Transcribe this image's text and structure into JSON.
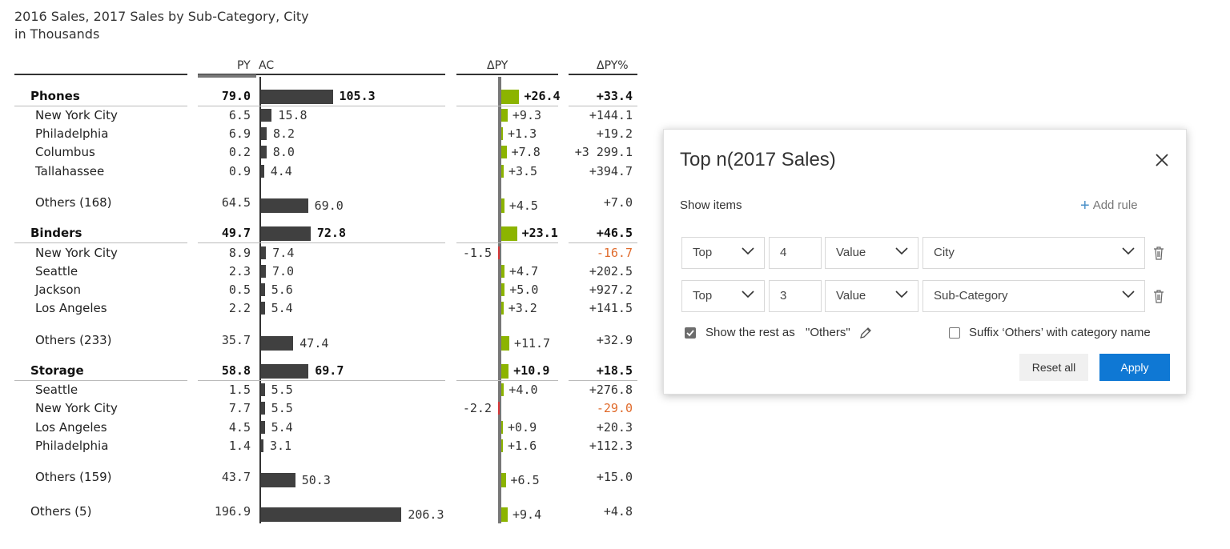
{
  "title_line1": "2016 Sales, 2017 Sales by Sub-Category, City",
  "title_line2": "in Thousands",
  "headers": {
    "py": "PY",
    "ac": "AC",
    "dpy": "ΔPY",
    "dpypct": "ΔPY%"
  },
  "rows": [
    {
      "label": "Phones",
      "group": true,
      "py": "79.0",
      "ac": "105.3",
      "dpy": "+26.4",
      "dpypct": "+33.4",
      "ac_v": 105.3,
      "dpy_v": 26.4
    },
    {
      "label": "New York City",
      "py": "6.5",
      "ac": "15.8",
      "dpy": "+9.3",
      "dpypct": "+144.1",
      "ac_v": 15.8,
      "dpy_v": 9.3
    },
    {
      "label": "Philadelphia",
      "py": "6.9",
      "ac": "8.2",
      "dpy": "+1.3",
      "dpypct": "+19.2",
      "ac_v": 8.2,
      "dpy_v": 1.3
    },
    {
      "label": "Columbus",
      "py": "0.2",
      "ac": "8.0",
      "dpy": "+7.8",
      "dpypct": "+3 299.1",
      "ac_v": 8.0,
      "dpy_v": 7.8
    },
    {
      "label": "Tallahassee",
      "py": "0.9",
      "ac": "4.4",
      "dpy": "+3.5",
      "dpypct": "+394.7",
      "ac_v": 4.4,
      "dpy_v": 3.5
    },
    {
      "label": "Others (168)",
      "py": "64.5",
      "ac": "69.0",
      "dpy": "+4.5",
      "dpypct": "+7.0",
      "ac_v": 69.0,
      "dpy_v": 4.5
    },
    {
      "label": "Binders",
      "group": true,
      "py": "49.7",
      "ac": "72.8",
      "dpy": "+23.1",
      "dpypct": "+46.5",
      "ac_v": 72.8,
      "dpy_v": 23.1
    },
    {
      "label": "New York City",
      "py": "8.9",
      "ac": "7.4",
      "dpy": "-1.5",
      "dpypct": "-16.7",
      "ac_v": 7.4,
      "dpy_v": -1.5
    },
    {
      "label": "Seattle",
      "py": "2.3",
      "ac": "7.0",
      "dpy": "+4.7",
      "dpypct": "+202.5",
      "ac_v": 7.0,
      "dpy_v": 4.7
    },
    {
      "label": "Jackson",
      "py": "0.5",
      "ac": "5.6",
      "dpy": "+5.0",
      "dpypct": "+927.2",
      "ac_v": 5.6,
      "dpy_v": 5.0
    },
    {
      "label": "Los Angeles",
      "py": "2.2",
      "ac": "5.4",
      "dpy": "+3.2",
      "dpypct": "+141.5",
      "ac_v": 5.4,
      "dpy_v": 3.2
    },
    {
      "label": "Others (233)",
      "py": "35.7",
      "ac": "47.4",
      "dpy": "+11.7",
      "dpypct": "+32.9",
      "ac_v": 47.4,
      "dpy_v": 11.7
    },
    {
      "label": "Storage",
      "group": true,
      "py": "58.8",
      "ac": "69.7",
      "dpy": "+10.9",
      "dpypct": "+18.5",
      "ac_v": 69.7,
      "dpy_v": 10.9
    },
    {
      "label": "Seattle",
      "py": "1.5",
      "ac": "5.5",
      "dpy": "+4.0",
      "dpypct": "+276.8",
      "ac_v": 5.5,
      "dpy_v": 4.0
    },
    {
      "label": "New York City",
      "py": "7.7",
      "ac": "5.5",
      "dpy": "-2.2",
      "dpypct": "-29.0",
      "ac_v": 5.5,
      "dpy_v": -2.2
    },
    {
      "label": "Los Angeles",
      "py": "4.5",
      "ac": "5.4",
      "dpy": "+0.9",
      "dpypct": "+20.3",
      "ac_v": 5.4,
      "dpy_v": 0.9
    },
    {
      "label": "Philadelphia",
      "py": "1.4",
      "ac": "3.1",
      "dpy": "+1.6",
      "dpypct": "+112.3",
      "ac_v": 3.1,
      "dpy_v": 1.6
    },
    {
      "label": "Others (159)",
      "py": "43.7",
      "ac": "50.3",
      "dpy": "+6.5",
      "dpypct": "+15.0",
      "ac_v": 50.3,
      "dpy_v": 6.5
    },
    {
      "label": "Others (5)",
      "top": true,
      "py": "196.9",
      "ac": "206.3",
      "dpy": "+9.4",
      "dpypct": "+4.8",
      "ac_v": 206.3,
      "dpy_v": 9.4
    }
  ],
  "colors": {
    "bar": "#404040",
    "positive": "#8cb400",
    "negative": "#d6383a",
    "neg_text": "#e06b2c",
    "apply": "#0f78d4"
  },
  "dialog": {
    "title": "Top n(2017 Sales)",
    "show_items": "Show items",
    "add_rule": "Add rule",
    "rules": [
      {
        "mode": "Top",
        "n": "4",
        "measure": "Value",
        "dimension": "City"
      },
      {
        "mode": "Top",
        "n": "3",
        "measure": "Value",
        "dimension": "Sub-Category"
      }
    ],
    "show_rest_label": "Show the rest as",
    "others_text": "\"Others\"",
    "show_rest_checked": true,
    "suffix_label": "Suffix ‘Others’ with category name",
    "suffix_checked": false,
    "reset_label": "Reset all",
    "apply_label": "Apply",
    "icons": {
      "close": "close-icon",
      "add": "plus-icon",
      "trash": "trash-icon",
      "edit": "pencil-icon",
      "chevron": "chevron-down-icon"
    }
  }
}
